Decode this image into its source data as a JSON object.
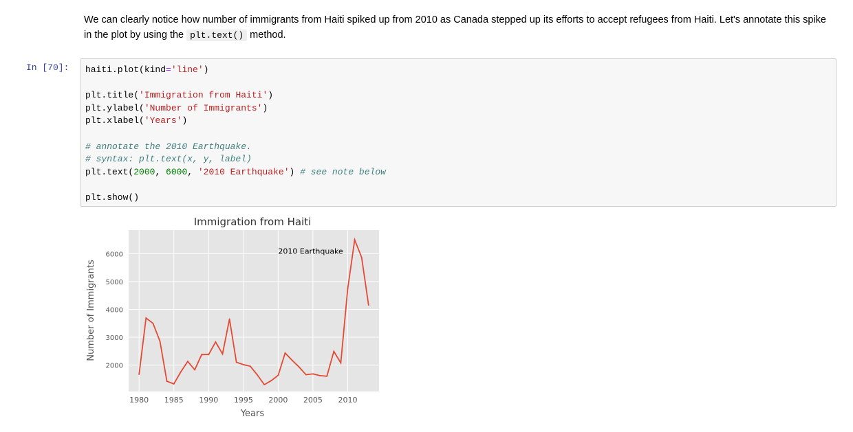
{
  "markdown": {
    "text_before": "We can clearly notice how number of immigrants from Haiti spiked up from 2010 as Canada stepped up its efforts to accept refugees from Haiti. Let's annotate this spike in the plot by using the ",
    "code": "plt.text()",
    "text_after": " method."
  },
  "cell": {
    "prompt": "In [70]:",
    "lines": {
      "l1_a": "haiti.plot(kind",
      "l1_op": "=",
      "l1_str": "'line'",
      "l1_b": ")",
      "l2_a": "plt.title(",
      "l2_str": "'Immigration from Haiti'",
      "l2_b": ")",
      "l3_a": "plt.ylabel(",
      "l3_str": "'Number of Immigrants'",
      "l3_b": ")",
      "l4_a": "plt.xlabel(",
      "l4_str": "'Years'",
      "l4_b": ")",
      "l5_com": "# annotate the 2010 Earthquake.",
      "l6_com": "# syntax: plt.text(x, y, label)",
      "l7_a": "plt.text(",
      "l7_n1": "2000",
      "l7_c1": ", ",
      "l7_n2": "6000",
      "l7_c2": ", ",
      "l7_str": "'2010 Earthquake'",
      "l7_b": ") ",
      "l7_com": "# see note below",
      "l8_a": "plt.show()"
    }
  },
  "chart_data": {
    "type": "line",
    "title": "Immigration from Haiti",
    "xlabel": "Years",
    "ylabel": "Number of Immigrants",
    "annotation": {
      "text": "2010 Earthquake",
      "x": 2000,
      "y": 6000
    },
    "xlim": [
      1978.5,
      2014.5
    ],
    "ylim": [
      1050,
      6850
    ],
    "xticks": [
      1980,
      1985,
      1990,
      1995,
      2000,
      2005,
      2010
    ],
    "yticks": [
      2000,
      3000,
      4000,
      5000,
      6000
    ],
    "grid": true,
    "line_color": "#e24a33",
    "x": [
      1980,
      1981,
      1982,
      1983,
      1984,
      1985,
      1986,
      1987,
      1988,
      1989,
      1990,
      1991,
      1992,
      1993,
      1994,
      1995,
      1996,
      1997,
      1998,
      1999,
      2000,
      2001,
      2002,
      2003,
      2004,
      2005,
      2006,
      2007,
      2008,
      2009,
      2010,
      2011,
      2012,
      2013
    ],
    "values": [
      1666,
      3692,
      3498,
      2860,
      1418,
      1321,
      1753,
      2132,
      1829,
      2377,
      2379,
      2829,
      2399,
      3655,
      2100,
      2014,
      1955,
      1645,
      1295,
      1439,
      1631,
      2433,
      2174,
      1930,
      1652,
      1682,
      1619,
      1598,
      2491,
      2080,
      4744,
      6503,
      5868,
      4152
    ]
  }
}
